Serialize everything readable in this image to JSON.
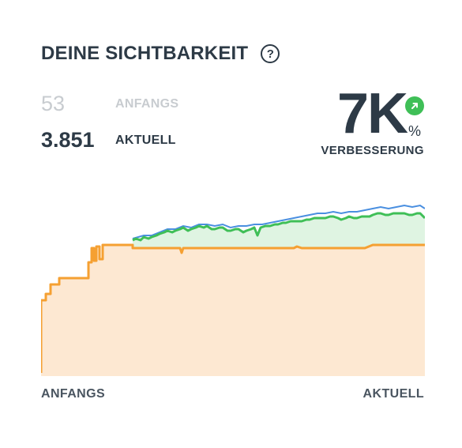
{
  "card": {
    "title": "DEINE SICHTBARKEIT",
    "help_icon": "question-circle-icon",
    "help_glyph": "?"
  },
  "stats": {
    "initial_value": "53",
    "initial_label": "ANFANGS",
    "current_value": "3.851",
    "current_label": "AKTUELL"
  },
  "improvement": {
    "value": "7K",
    "unit": "%",
    "label": "VERBESSERUNG",
    "icon": "arrow-up-right-icon",
    "badge_color": "#3fbf57"
  },
  "axis": {
    "start_label": "ANFANGS",
    "end_label": "AKTUELL"
  },
  "colors": {
    "orange": "#f5a032",
    "orange_fill": "#fde8d2",
    "green": "#3fbf57",
    "green_fill": "#dff4e2",
    "blue": "#4a8fe0"
  }
}
